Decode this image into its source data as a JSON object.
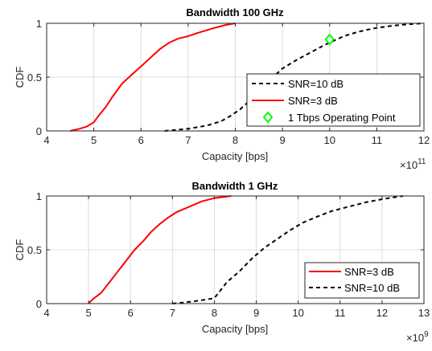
{
  "colors": {
    "snr3": "#ff0000",
    "snr10": "#000000",
    "operating_point": "#00ff00",
    "grid": "#dcdcdc",
    "axis": "#262626"
  },
  "chart_data": [
    {
      "type": "line",
      "title": "Bandwidth 100 GHz",
      "xlabel": "Capacity [bps]",
      "ylabel": "CDF",
      "x_exponent_label": "×10",
      "x_exponent": "11",
      "xlim": [
        4,
        12
      ],
      "ylim": [
        0,
        1
      ],
      "xticks": [
        "4",
        "5",
        "6",
        "7",
        "8",
        "9",
        "10",
        "11",
        "12"
      ],
      "yticks": [
        "0",
        "0.5",
        "1"
      ],
      "grid": true,
      "legend_position": "lower-right",
      "series": [
        {
          "name": "SNR=10 dB",
          "style": "dashed",
          "color": "#000000",
          "x": [
            6.5,
            7.0,
            7.4,
            7.7,
            7.9,
            8.1,
            8.3,
            8.55,
            8.8,
            9.0,
            9.3,
            9.6,
            9.9,
            10.1,
            10.3,
            10.6,
            10.9,
            11.2,
            11.5,
            11.8,
            12.0
          ],
          "y": [
            0.0,
            0.02,
            0.05,
            0.09,
            0.14,
            0.2,
            0.28,
            0.4,
            0.5,
            0.58,
            0.66,
            0.73,
            0.8,
            0.84,
            0.88,
            0.92,
            0.95,
            0.97,
            0.985,
            0.995,
            1.0
          ]
        },
        {
          "name": "SNR=3 dB",
          "style": "solid",
          "color": "#ff0000",
          "x": [
            4.5,
            4.7,
            4.85,
            5.0,
            5.1,
            5.25,
            5.4,
            5.6,
            5.8,
            6.0,
            6.2,
            6.4,
            6.6,
            6.8,
            7.0,
            7.2,
            7.5,
            7.8,
            8.0
          ],
          "y": [
            0.0,
            0.02,
            0.04,
            0.08,
            0.14,
            0.22,
            0.32,
            0.44,
            0.52,
            0.6,
            0.68,
            0.76,
            0.82,
            0.86,
            0.88,
            0.91,
            0.95,
            0.985,
            1.0
          ]
        }
      ],
      "markers": [
        {
          "name": "1 Tbps Operating Point",
          "x": 10,
          "y": 0.85,
          "shape": "diamond",
          "color": "#00ff00"
        }
      ]
    },
    {
      "type": "line",
      "title": "Bandwidth 1 GHz",
      "xlabel": "Capacity [bps]",
      "ylabel": "CDF",
      "x_exponent_label": "×10",
      "x_exponent": "9",
      "xlim": [
        4,
        13
      ],
      "ylim": [
        0,
        1
      ],
      "xticks": [
        "4",
        "5",
        "6",
        "7",
        "8",
        "9",
        "10",
        "11",
        "12",
        "13"
      ],
      "yticks": [
        "0",
        "0.5",
        "1"
      ],
      "grid": true,
      "legend_position": "lower-right",
      "series": [
        {
          "name": "SNR=3 dB",
          "style": "solid",
          "color": "#ff0000",
          "x": [
            5.0,
            5.1,
            5.3,
            5.5,
            5.7,
            5.9,
            6.1,
            6.3,
            6.5,
            6.7,
            6.9,
            7.1,
            7.4,
            7.7,
            8.0,
            8.4
          ],
          "y": [
            0.0,
            0.04,
            0.1,
            0.2,
            0.3,
            0.4,
            0.5,
            0.58,
            0.67,
            0.74,
            0.8,
            0.85,
            0.9,
            0.95,
            0.98,
            1.0
          ]
        },
        {
          "name": "SNR=10 dB",
          "style": "dashed",
          "color": "#000000",
          "x": [
            7.0,
            7.5,
            8.0,
            8.3,
            8.6,
            8.9,
            9.2,
            9.5,
            9.8,
            10.1,
            10.4,
            10.8,
            11.2,
            11.6,
            12.0,
            12.5
          ],
          "y": [
            0.0,
            0.02,
            0.05,
            0.2,
            0.3,
            0.42,
            0.52,
            0.6,
            0.68,
            0.75,
            0.8,
            0.86,
            0.9,
            0.94,
            0.97,
            1.0
          ]
        }
      ],
      "markers": []
    }
  ]
}
